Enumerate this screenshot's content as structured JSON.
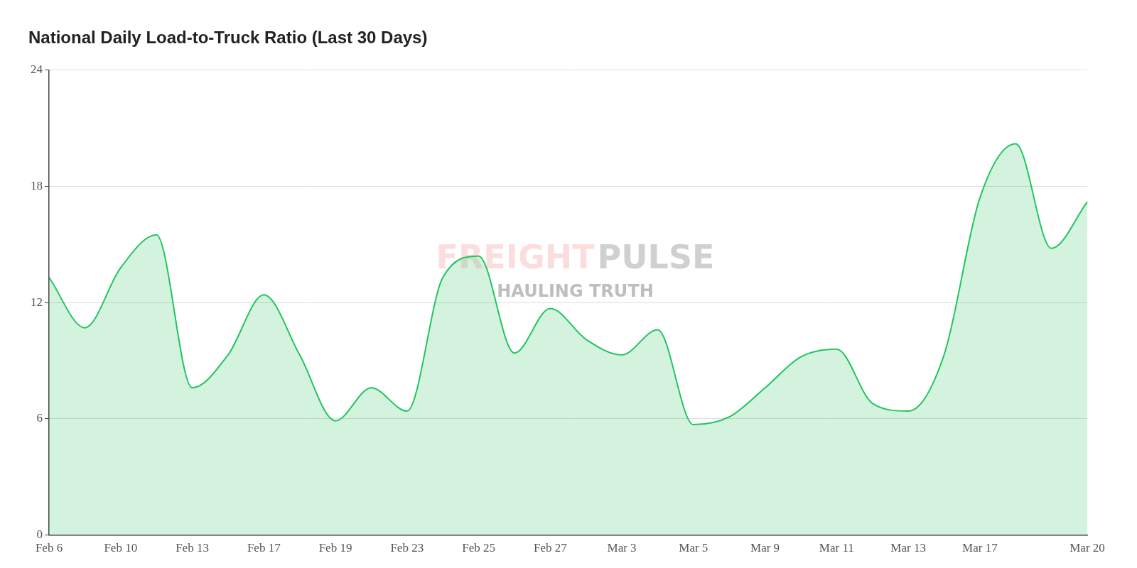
{
  "chart_data": {
    "type": "area",
    "title": "National Daily Load-to-Truck Ratio (Last 30 Days)",
    "watermark": [
      "FREIGHT PULSE",
      "HAULING TRUTH"
    ],
    "categories": [
      "Feb 6",
      null,
      "Feb 10",
      null,
      "Feb 13",
      null,
      "Feb 17",
      null,
      "Feb 19",
      null,
      "Feb 23",
      null,
      "Feb 25",
      null,
      "Feb 27",
      null,
      "Mar 3",
      null,
      "Mar 5",
      null,
      "Mar 9",
      null,
      "Mar 11",
      null,
      "Mar 13",
      null,
      "Mar 17",
      null,
      null,
      "Mar 20"
    ],
    "values": [
      13.3,
      10.7,
      13.8,
      15.5,
      7.6,
      9.3,
      12.4,
      9.3,
      5.9,
      7.6,
      6.4,
      13.3,
      14.4,
      9.4,
      11.7,
      10.1,
      9.3,
      10.6,
      5.7,
      6.1,
      7.6,
      9.2,
      9.6,
      6.8,
      6.4,
      9.3,
      17.4,
      20.2,
      14.8,
      17.2
    ],
    "color": "#22c55e",
    "ylim": [
      0,
      24
    ],
    "yticks": [
      0,
      6,
      12,
      18,
      24
    ],
    "grid": true
  }
}
